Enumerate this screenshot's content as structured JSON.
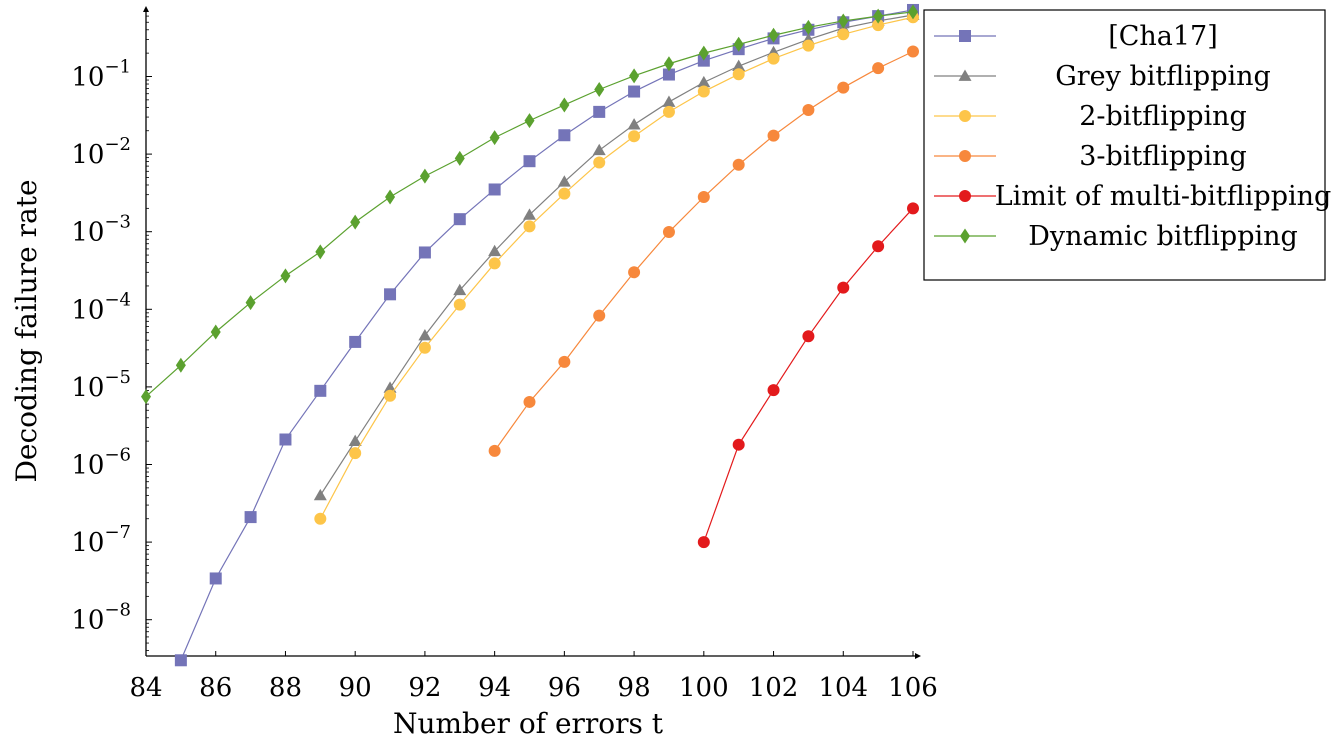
{
  "chart_data": {
    "type": "line",
    "xlabel": "Number of errors t",
    "ylabel": "Decoding failure rate",
    "xlim": [
      84,
      106
    ],
    "ylim": [
      3e-09,
      0.8
    ],
    "yscale": "log",
    "xticks": [
      "84",
      "86",
      "88",
      "90",
      "92",
      "94",
      "96",
      "98",
      "100",
      "102",
      "104",
      "106"
    ],
    "yticks": [
      {
        "mantissa": "10",
        "exp": "−8"
      },
      {
        "mantissa": "10",
        "exp": "−7"
      },
      {
        "mantissa": "10",
        "exp": "−6"
      },
      {
        "mantissa": "10",
        "exp": "−5"
      },
      {
        "mantissa": "10",
        "exp": "−4"
      },
      {
        "mantissa": "10",
        "exp": "−3"
      },
      {
        "mantissa": "10",
        "exp": "−2"
      },
      {
        "mantissa": "10",
        "exp": "−1"
      }
    ],
    "grid": false,
    "legend_position": "outside-right-top",
    "series": [
      {
        "name": "[Cha17]",
        "color": "#7474b8",
        "marker": "square",
        "x": [
          85,
          86,
          87,
          88,
          89,
          90,
          91,
          92,
          93,
          94,
          95,
          96,
          97,
          98,
          99,
          100,
          101,
          102,
          103,
          104,
          105,
          106
        ],
        "y": [
          3e-09,
          3.4e-08,
          2.1e-07,
          2.1e-06,
          8.9e-06,
          3.8e-05,
          0.000156,
          0.00054,
          0.00145,
          0.0035,
          0.0081,
          0.0175,
          0.035,
          0.064,
          0.106,
          0.16,
          0.225,
          0.31,
          0.4,
          0.5,
          0.6,
          0.72
        ]
      },
      {
        "name": "Grey bitflipping",
        "color": "#808080",
        "marker": "triangle",
        "x": [
          89,
          90,
          91,
          92,
          93,
          94,
          95,
          96,
          97,
          98,
          99,
          100,
          101,
          102,
          103,
          104,
          105,
          106
        ],
        "y": [
          4e-07,
          2e-06,
          9.7e-06,
          4.6e-05,
          0.000176,
          0.00056,
          0.00165,
          0.0044,
          0.0112,
          0.024,
          0.047,
          0.084,
          0.136,
          0.205,
          0.3,
          0.42,
          0.52,
          0.62
        ]
      },
      {
        "name": "2-bitflipping",
        "color": "#fdc549",
        "marker": "circle",
        "x": [
          89,
          90,
          91,
          92,
          93,
          94,
          95,
          96,
          97,
          98,
          99,
          100,
          101,
          102,
          103,
          104,
          105,
          106
        ],
        "y": [
          2e-07,
          1.4e-06,
          7.7e-06,
          3.2e-05,
          0.000115,
          0.00039,
          0.00117,
          0.0031,
          0.0078,
          0.017,
          0.035,
          0.064,
          0.107,
          0.17,
          0.25,
          0.35,
          0.46,
          0.58
        ]
      },
      {
        "name": "3-bitflipping",
        "color": "#f7883c",
        "marker": "circle",
        "x": [
          94,
          95,
          96,
          97,
          98,
          99,
          100,
          101,
          102,
          103,
          104,
          105,
          106
        ],
        "y": [
          1.5e-06,
          6.4e-06,
          2.1e-05,
          8.3e-05,
          0.0003,
          0.00099,
          0.0028,
          0.0073,
          0.0173,
          0.037,
          0.072,
          0.128,
          0.21
        ]
      },
      {
        "name": "Limit of multi-bitflipping",
        "color": "#e31a1c",
        "marker": "circle",
        "x": [
          100,
          101,
          102,
          103,
          104,
          105,
          106
        ],
        "y": [
          1e-07,
          1.8e-06,
          9.1e-06,
          4.5e-05,
          0.00019,
          0.00065,
          0.002
        ]
      },
      {
        "name": "Dynamic bitflipping",
        "color": "#5ba12f",
        "marker": "diamond",
        "x": [
          84,
          85,
          86,
          87,
          88,
          89,
          90,
          91,
          92,
          93,
          94,
          95,
          96,
          97,
          98,
          99,
          100,
          101,
          102,
          103,
          104,
          105,
          106
        ],
        "y": [
          7.5e-06,
          1.9e-05,
          5.1e-05,
          0.000122,
          0.00027,
          0.00055,
          0.00133,
          0.0028,
          0.0052,
          0.0088,
          0.0163,
          0.027,
          0.043,
          0.068,
          0.102,
          0.146,
          0.2,
          0.26,
          0.34,
          0.43,
          0.52,
          0.6,
          0.68
        ]
      }
    ]
  }
}
